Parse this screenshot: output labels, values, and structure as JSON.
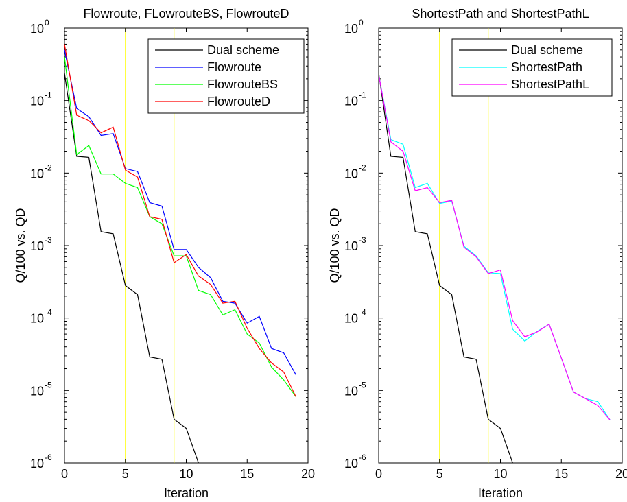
{
  "chart_data": [
    {
      "type": "line",
      "title": "Flowroute, FLowrouteBS, FlowrouteD",
      "xlabel": "Iteration",
      "ylabel": "Q/100 vs. QD",
      "xlim": [
        0,
        20
      ],
      "ylim": [
        1e-06,
        1
      ],
      "yscale": "log",
      "x_ticks": [
        0,
        5,
        10,
        15,
        20
      ],
      "y_ticks": [
        {
          "value": 1,
          "base": "10",
          "exp": "0"
        },
        {
          "value": 0.1,
          "base": "10",
          "exp": "-1"
        },
        {
          "value": 0.01,
          "base": "10",
          "exp": "-2"
        },
        {
          "value": 0.001,
          "base": "10",
          "exp": "-3"
        },
        {
          "value": 0.0001,
          "base": "10",
          "exp": "-4"
        },
        {
          "value": 1e-05,
          "base": "10",
          "exp": "-5"
        },
        {
          "value": 1e-06,
          "base": "10",
          "exp": "-6"
        }
      ],
      "vlines": [
        5,
        9
      ],
      "vline_color": "#ffff00",
      "grid": false,
      "legend_position": "top-right",
      "series": [
        {
          "name": "Dual scheme",
          "color": "#000000",
          "x": [
            0,
            1,
            2,
            3,
            4,
            5,
            6,
            7,
            8,
            9,
            10,
            11,
            12
          ],
          "y": [
            0.24,
            0.017,
            0.0165,
            0.00155,
            0.00145,
            0.00028,
            0.00021,
            2.9e-05,
            2.7e-05,
            4e-06,
            3e-06,
            1e-06,
            4.5e-07
          ]
        },
        {
          "name": "Flowroute",
          "color": "#0000ff",
          "x": [
            0,
            1,
            2,
            3,
            4,
            5,
            6,
            7,
            8,
            9,
            10,
            11,
            12,
            13,
            14,
            15,
            16,
            17,
            18,
            19
          ],
          "y": [
            0.5,
            0.078,
            0.06,
            0.033,
            0.035,
            0.0115,
            0.0105,
            0.0039,
            0.0035,
            0.00088,
            0.00088,
            0.0005,
            0.00036,
            0.00017,
            0.00016,
            8.5e-05,
            0.000105,
            3.8e-05,
            3.3e-05,
            1.65e-05
          ]
        },
        {
          "name": "FlowrouteBS",
          "color": "#00ff00",
          "x": [
            0,
            1,
            2,
            3,
            4,
            5,
            6,
            7,
            8,
            9,
            10,
            11,
            12,
            13,
            14,
            15,
            16,
            17,
            18,
            19
          ],
          "y": [
            0.4,
            0.018,
            0.024,
            0.0097,
            0.0097,
            0.0072,
            0.0063,
            0.0025,
            0.002,
            0.00072,
            0.00072,
            0.00024,
            0.00021,
            0.00011,
            0.00013,
            6e-05,
            4.5e-05,
            2.1e-05,
            1.4e-05,
            8.2e-06
          ]
        },
        {
          "name": "FlowrouteD",
          "color": "#ff0000",
          "x": [
            0,
            1,
            2,
            3,
            4,
            5,
            6,
            7,
            8,
            9,
            10,
            11,
            12,
            13,
            14,
            15,
            16,
            17,
            18,
            19
          ],
          "y": [
            0.6,
            0.063,
            0.053,
            0.036,
            0.043,
            0.011,
            0.0088,
            0.0025,
            0.0023,
            0.00058,
            0.00075,
            0.00038,
            0.00029,
            0.00016,
            0.00017,
            7.2e-05,
            3.8e-05,
            2.4e-05,
            1.8e-05,
            8.2e-06
          ]
        }
      ]
    },
    {
      "type": "line",
      "title": "ShortestPath and ShortestPathL",
      "xlabel": "Iteration",
      "ylabel": "Q/100 vs. QD",
      "xlim": [
        0,
        20
      ],
      "ylim": [
        1e-06,
        1
      ],
      "yscale": "log",
      "x_ticks": [
        0,
        5,
        10,
        15,
        20
      ],
      "y_ticks": [
        {
          "value": 1,
          "base": "10",
          "exp": "0"
        },
        {
          "value": 0.1,
          "base": "10",
          "exp": "-1"
        },
        {
          "value": 0.01,
          "base": "10",
          "exp": "-2"
        },
        {
          "value": 0.001,
          "base": "10",
          "exp": "-3"
        },
        {
          "value": 0.0001,
          "base": "10",
          "exp": "-4"
        },
        {
          "value": 1e-05,
          "base": "10",
          "exp": "-5"
        },
        {
          "value": 1e-06,
          "base": "10",
          "exp": "-6"
        }
      ],
      "vlines": [
        5,
        9
      ],
      "vline_color": "#ffff00",
      "grid": false,
      "legend_position": "top-right",
      "series": [
        {
          "name": "Dual scheme",
          "color": "#000000",
          "x": [
            0,
            1,
            2,
            3,
            4,
            5,
            6,
            7,
            8,
            9,
            10,
            11,
            12
          ],
          "y": [
            0.24,
            0.017,
            0.0165,
            0.00155,
            0.00145,
            0.00028,
            0.00021,
            2.9e-05,
            2.7e-05,
            4e-06,
            3e-06,
            1e-06,
            4.5e-07
          ]
        },
        {
          "name": "ShortestPath",
          "color": "#00ffff",
          "x": [
            0,
            1,
            2,
            3,
            4,
            5,
            6,
            7,
            8,
            9,
            10,
            11,
            12,
            13,
            14,
            15,
            16,
            17,
            18,
            19
          ],
          "y": [
            0.23,
            0.029,
            0.025,
            0.0063,
            0.0072,
            0.0038,
            0.0041,
            0.00098,
            0.00072,
            0.00042,
            0.00041,
            7e-05,
            4.8e-05,
            6.5e-05,
            8.2e-05,
            2.8e-05,
            9.5e-06,
            7.7e-06,
            7e-06,
            3.9e-06
          ]
        },
        {
          "name": "ShortestPathL",
          "color": "#ff00ff",
          "x": [
            0,
            1,
            2,
            3,
            4,
            5,
            6,
            7,
            8,
            9,
            10,
            11,
            12,
            13,
            14,
            15,
            16,
            17,
            18,
            19
          ],
          "y": [
            0.23,
            0.027,
            0.02,
            0.0057,
            0.0063,
            0.0039,
            0.0042,
            0.00095,
            0.0007,
            0.00041,
            0.00046,
            9.2e-05,
            5.5e-05,
            6.4e-05,
            8.2e-05,
            2.8e-05,
            9.5e-06,
            7.7e-06,
            6.2e-06,
            3.9e-06
          ]
        }
      ]
    }
  ]
}
